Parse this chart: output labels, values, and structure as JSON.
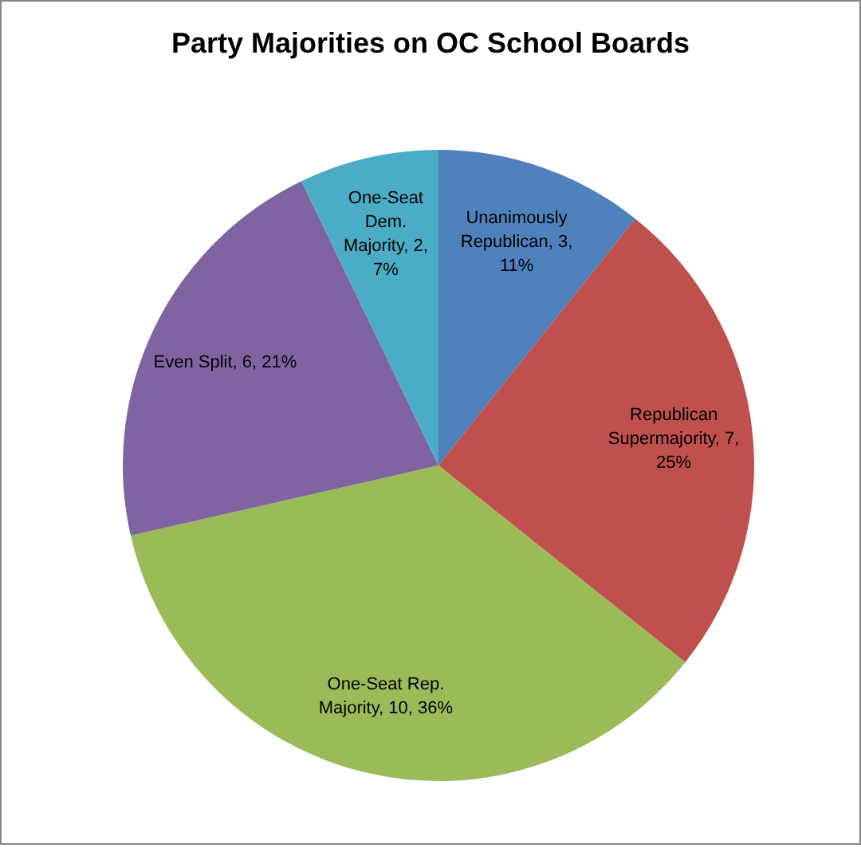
{
  "chart_data": {
    "type": "pie",
    "title": "Party Majorities on OC School Boards",
    "categories": [
      "Unanimously Republican",
      "Republican Supermajority",
      "One-Seat Rep. Majority",
      "Even Split",
      "One-Seat Dem. Majority"
    ],
    "values": [
      3,
      7,
      10,
      6,
      2
    ],
    "value_labels": [
      "3, 11%",
      "7, 25%",
      "10, 36%",
      "6, 21%",
      "2, 7%"
    ],
    "colors": [
      "#4f81bd",
      "#c0504d",
      "#9bbb59",
      "#8064a2",
      "#4bacc6"
    ]
  }
}
